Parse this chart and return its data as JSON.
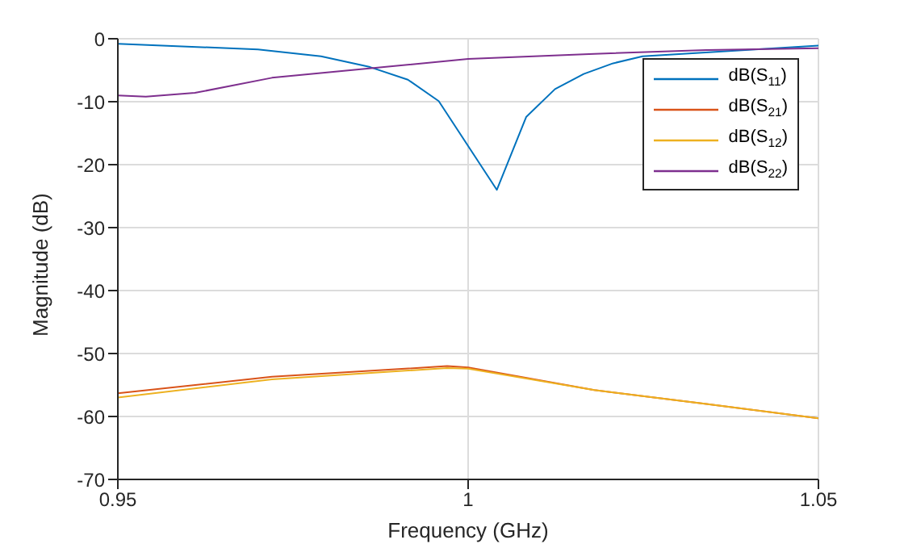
{
  "chart_data": {
    "type": "line",
    "xlabel": "Frequency (GHz)",
    "ylabel": "Magnitude (dB)",
    "xlim": [
      0.95,
      1.05
    ],
    "xticks": [
      0.95,
      1,
      1.05
    ],
    "ylim": [
      -70,
      0
    ],
    "yticks": [
      -70,
      -60,
      -50,
      -40,
      -30,
      -20,
      -10,
      0
    ],
    "grid": true,
    "legend": "top right",
    "line_style": "solid",
    "marker": "none",
    "series": [
      {
        "name": "dB(S$_{11}$)",
        "color": "#0072bd",
        "x": [
          0.95,
          0.97,
          0.979,
          0.986,
          0.9914,
          0.9958,
          1.0041,
          1.0083,
          1.0124,
          1.0165,
          1.0207,
          1.0249,
          1.05
        ],
        "values": [
          -0.8,
          -1.7,
          -2.8,
          -4.5,
          -6.5,
          -9.9,
          -24,
          -12.4,
          -8,
          -5.6,
          -3.9,
          -2.8,
          -1.1
        ]
      },
      {
        "name": "dB(S$_{21}$)",
        "color": "#d95319",
        "x": [
          0.95,
          0.972,
          0.997,
          1,
          1.018,
          1.034,
          1.05
        ],
        "values": [
          -56.3,
          -53.7,
          -52,
          -52.2,
          -55.8,
          -58,
          -60.3
        ]
      },
      {
        "name": "dB(S$_{12}$)",
        "color": "#edb120",
        "x": [
          0.95,
          0.972,
          0.997,
          1,
          1.018,
          1.034,
          1.05
        ],
        "values": [
          -57,
          -54.1,
          -52.3,
          -52.4,
          -55.8,
          -58,
          -60.3
        ]
      },
      {
        "name": "dB(S$_{22}$)",
        "color": "#7e2f8e",
        "x": [
          0.95,
          0.954,
          0.961,
          0.972,
          0.988,
          1,
          1.018,
          1.034,
          1.05
        ],
        "values": [
          -9,
          -9.2,
          -8.6,
          -6.2,
          -4.5,
          -3.2,
          -2.4,
          -1.8,
          -1.5
        ]
      }
    ]
  }
}
